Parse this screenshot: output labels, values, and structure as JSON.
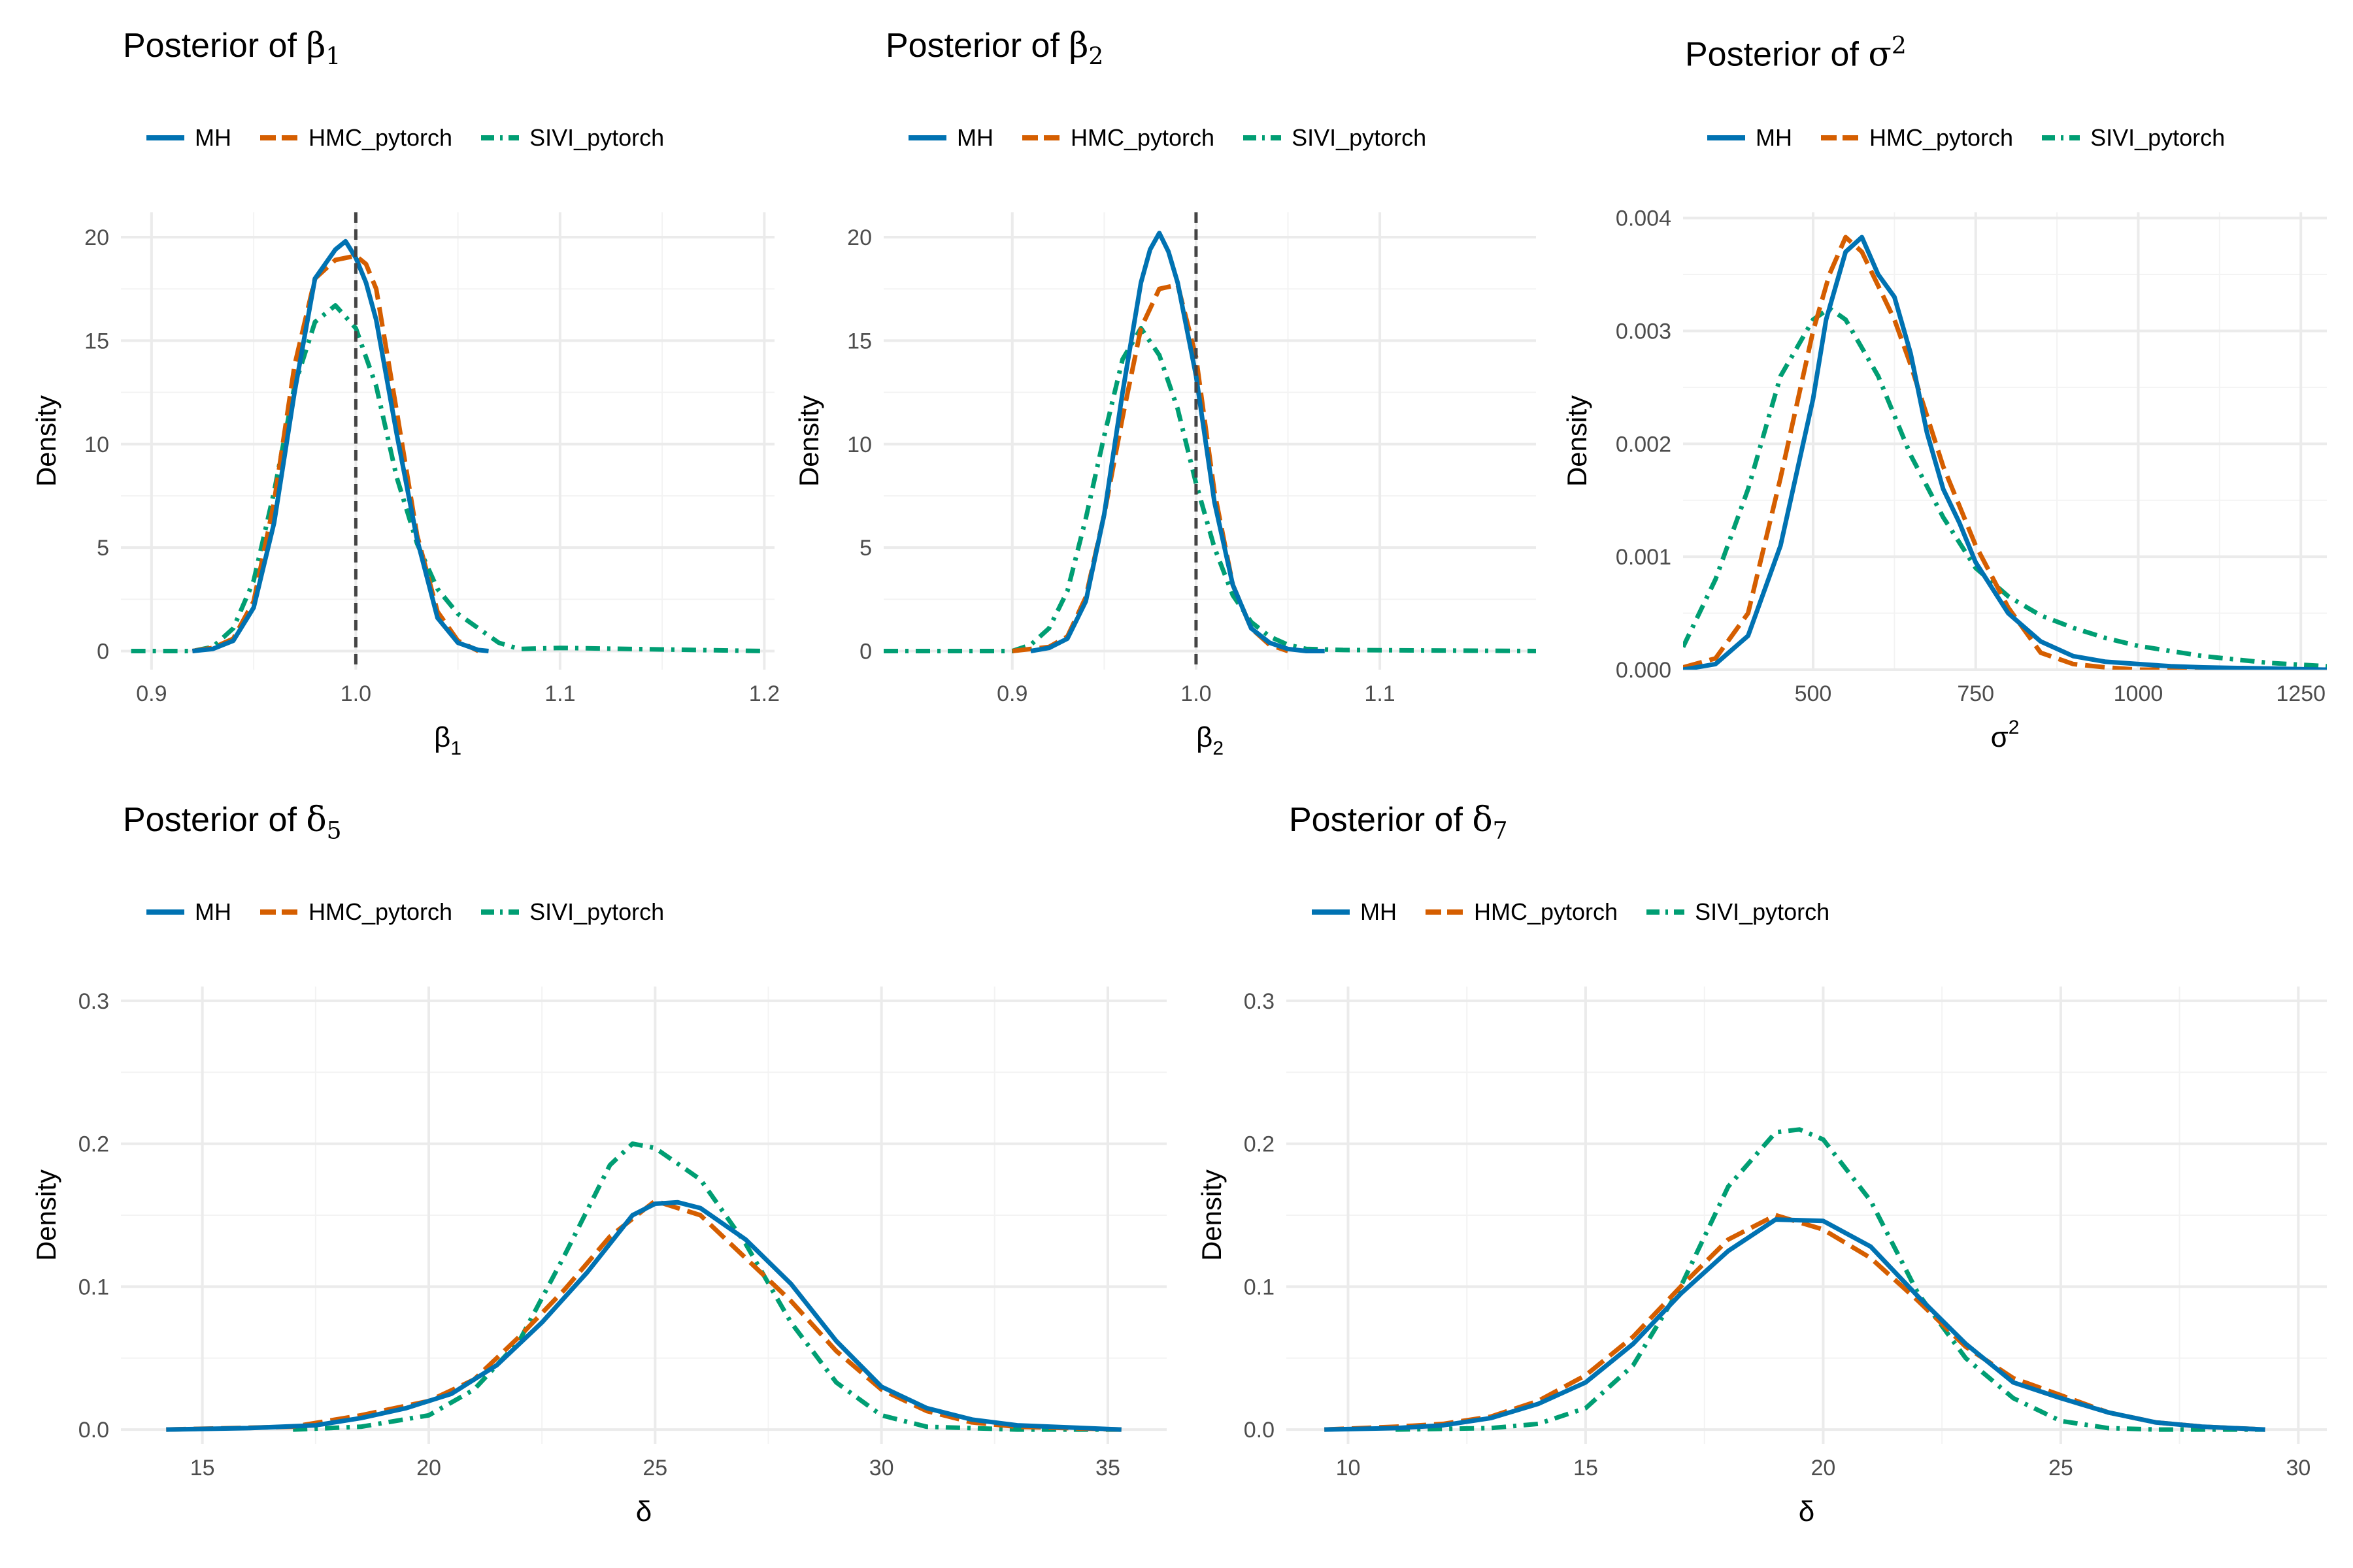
{
  "legend": {
    "labels": [
      "MH",
      "HMC_pytorch",
      "SIVI_pytorch"
    ]
  },
  "colors": {
    "MH": "#0072B2",
    "HMC_pytorch": "#D55E00",
    "SIVI_pytorch": "#009E73",
    "ref_line": "#444444",
    "grid": "#ebebeb"
  },
  "chart_data": [
    {
      "id": "beta1",
      "type": "line",
      "title": "Posterior of β1",
      "title_prefix": "Posterior of ",
      "title_symbol": "β",
      "title_sub": "1",
      "xlabel": "β1",
      "xlabel_symbol": "β",
      "xlabel_sub": "1",
      "ylabel": "Density",
      "xlim": [
        0.885,
        1.205
      ],
      "ylim": [
        -0.9,
        21.2
      ],
      "xticks": [
        0.9,
        1.0,
        1.1,
        1.2
      ],
      "xtick_labels": [
        "0.9",
        "1.0",
        "1.1",
        "1.2"
      ],
      "yticks": [
        0,
        5,
        10,
        15,
        20
      ],
      "ytick_labels": [
        "0",
        "5",
        "10",
        "15",
        "20"
      ],
      "ref_line": 1.0,
      "series": [
        {
          "name": "MH",
          "x": [
            0.92,
            0.93,
            0.94,
            0.95,
            0.96,
            0.97,
            0.98,
            0.99,
            0.995,
            1.0,
            1.005,
            1.01,
            1.02,
            1.03,
            1.04,
            1.05,
            1.06,
            1.065
          ],
          "y": [
            0,
            0.1,
            0.5,
            2.1,
            6.2,
            12.5,
            18,
            19.4,
            19.8,
            19,
            17.8,
            16,
            10.5,
            5.4,
            1.6,
            0.4,
            0.05,
            0
          ]
        },
        {
          "name": "HMC_pytorch",
          "x": [
            0.92,
            0.93,
            0.94,
            0.95,
            0.96,
            0.97,
            0.98,
            0.99,
            1.0,
            1.005,
            1.01,
            1.02,
            1.03,
            1.04,
            1.05,
            1.06
          ],
          "y": [
            0,
            0.15,
            0.6,
            2.4,
            7.2,
            13.8,
            18,
            18.9,
            19.1,
            18.7,
            17.5,
            11.6,
            5.6,
            1.9,
            0.5,
            0
          ]
        },
        {
          "name": "SIVI_pytorch",
          "x": [
            0.89,
            0.92,
            0.93,
            0.94,
            0.95,
            0.96,
            0.97,
            0.98,
            0.99,
            1.0,
            1.01,
            1.02,
            1.03,
            1.04,
            1.05,
            1.06,
            1.07,
            1.08,
            1.1,
            1.2
          ],
          "y": [
            0,
            0,
            0.2,
            1.1,
            3.4,
            7.7,
            12.8,
            15.9,
            16.7,
            15.6,
            12.8,
            8.4,
            5.2,
            3,
            1.8,
            1.1,
            0.4,
            0.1,
            0.15,
            0
          ]
        }
      ]
    },
    {
      "id": "beta2",
      "type": "line",
      "title": "Posterior of β2",
      "title_prefix": "Posterior of ",
      "title_symbol": "β",
      "title_sub": "2",
      "xlabel": "β2",
      "xlabel_symbol": "β",
      "xlabel_sub": "2",
      "ylabel": "Density",
      "xlim": [
        0.83,
        1.185
      ],
      "ylim": [
        -0.9,
        21.2
      ],
      "xticks": [
        0.9,
        1.0,
        1.1
      ],
      "xtick_labels": [
        "0.9",
        "1.0",
        "1.1"
      ],
      "yticks": [
        0,
        5,
        10,
        15,
        20
      ],
      "ytick_labels": [
        "0",
        "5",
        "10",
        "15",
        "20"
      ],
      "ref_line": 1.0,
      "series": [
        {
          "name": "MH",
          "x": [
            0.91,
            0.92,
            0.93,
            0.94,
            0.95,
            0.96,
            0.97,
            0.975,
            0.98,
            0.985,
            0.99,
            1.0,
            1.01,
            1.02,
            1.03,
            1.04,
            1.05,
            1.06,
            1.07
          ],
          "y": [
            0,
            0.15,
            0.6,
            2.4,
            6.6,
            12.5,
            17.8,
            19.4,
            20.2,
            19.3,
            17.8,
            13.3,
            7.2,
            3.2,
            1.1,
            0.4,
            0.1,
            0,
            0
          ]
        },
        {
          "name": "HMC_pytorch",
          "x": [
            0.9,
            0.92,
            0.93,
            0.94,
            0.95,
            0.96,
            0.97,
            0.98,
            0.99,
            1.0,
            1.01,
            1.02,
            1.03,
            1.04,
            1.05
          ],
          "y": [
            0,
            0.2,
            0.7,
            2.6,
            6.6,
            11.3,
            15.6,
            17.5,
            17.7,
            14.2,
            7.7,
            3.2,
            1.1,
            0.3,
            0
          ]
        },
        {
          "name": "SIVI_pytorch",
          "x": [
            0.83,
            0.9,
            0.91,
            0.92,
            0.93,
            0.94,
            0.95,
            0.96,
            0.97,
            0.98,
            0.99,
            1.0,
            1.01,
            1.02,
            1.03,
            1.04,
            1.05,
            1.06,
            1.08,
            1.185
          ],
          "y": [
            0,
            0,
            0.3,
            1.1,
            2.9,
            6.4,
            10.4,
            14.1,
            15.6,
            14.3,
            11.7,
            8.1,
            5,
            2.7,
            1.4,
            0.7,
            0.3,
            0.1,
            0.05,
            0
          ]
        }
      ]
    },
    {
      "id": "sigma2",
      "type": "line",
      "title": "Posterior of σ2",
      "title_prefix": "Posterior of ",
      "title_symbol": "σ",
      "title_sup": "2",
      "xlabel": "σ2",
      "xlabel_symbol": "σ",
      "xlabel_sup": "2",
      "ylabel": "Density",
      "xlim": [
        300,
        1290
      ],
      "ylim": [
        0,
        0.00405
      ],
      "xticks": [
        500,
        750,
        1000,
        1250
      ],
      "xtick_labels": [
        "500",
        "750",
        "1000",
        "1250"
      ],
      "yticks": [
        0,
        0.001,
        0.002,
        0.003,
        0.004
      ],
      "ytick_labels": [
        "0.000",
        "0.001",
        "0.002",
        "0.003",
        "0.004"
      ],
      "series": [
        {
          "name": "MH",
          "x": [
            300,
            350,
            400,
            450,
            500,
            520,
            550,
            575,
            600,
            625,
            650,
            675,
            700,
            725,
            750,
            800,
            850,
            900,
            950,
            1000,
            1050,
            1100,
            1200,
            1290
          ],
          "y": [
            0,
            5e-05,
            0.0003,
            0.0011,
            0.0024,
            0.0031,
            0.0037,
            0.00383,
            0.0035,
            0.0033,
            0.0028,
            0.0021,
            0.0016,
            0.0013,
            0.00095,
            0.0005,
            0.00025,
            0.00012,
            7e-05,
            5e-05,
            3e-05,
            2e-05,
            1e-05,
            0
          ]
        },
        {
          "name": "HMC_pytorch",
          "x": [
            300,
            350,
            400,
            450,
            500,
            525,
            550,
            575,
            600,
            625,
            650,
            700,
            750,
            800,
            850,
            900,
            950,
            1000,
            1100,
            1200
          ],
          "y": [
            2e-05,
            0.0001,
            0.0005,
            0.0017,
            0.003,
            0.0035,
            0.00383,
            0.0037,
            0.0034,
            0.0031,
            0.0027,
            0.0018,
            0.0011,
            0.00055,
            0.00015,
            5e-05,
            2e-05,
            0,
            0,
            0
          ]
        },
        {
          "name": "SIVI_pytorch",
          "x": [
            300,
            350,
            400,
            450,
            500,
            525,
            550,
            600,
            650,
            700,
            750,
            800,
            850,
            900,
            950,
            1000,
            1100,
            1200,
            1290
          ],
          "y": [
            0.0002,
            0.0008,
            0.0016,
            0.0026,
            0.0031,
            0.0032,
            0.0031,
            0.0026,
            0.0019,
            0.00135,
            0.0009,
            0.00065,
            0.00048,
            0.00037,
            0.00028,
            0.00021,
            0.00012,
            6e-05,
            3e-05
          ]
        }
      ]
    },
    {
      "id": "delta5",
      "type": "line",
      "title": "Posterior of δ5",
      "title_prefix": "Posterior of ",
      "title_symbol": "δ",
      "title_sub": "5",
      "xlabel": "δ",
      "xlabel_symbol": "δ",
      "ylabel": "Density",
      "xlim": [
        13.2,
        36.3
      ],
      "ylim": [
        -0.01,
        0.31
      ],
      "xticks": [
        15,
        20,
        25,
        30,
        35
      ],
      "xtick_labels": [
        "15",
        "20",
        "25",
        "30",
        "35"
      ],
      "yticks": [
        0,
        0.1,
        0.2,
        0.3
      ],
      "ytick_labels": [
        "0.0",
        "0.1",
        "0.2",
        "0.3"
      ],
      "series": [
        {
          "name": "MH",
          "x": [
            14.2,
            16,
            17.5,
            18.5,
            19.5,
            20.5,
            21.5,
            22.5,
            23.5,
            24.5,
            25,
            25.5,
            26,
            27,
            28,
            29,
            30,
            31,
            32,
            33,
            35.3
          ],
          "y": [
            0,
            0.001,
            0.003,
            0.008,
            0.015,
            0.025,
            0.045,
            0.075,
            0.11,
            0.15,
            0.158,
            0.159,
            0.155,
            0.133,
            0.102,
            0.062,
            0.03,
            0.015,
            0.007,
            0.003,
            0
          ]
        },
        {
          "name": "HMC_pytorch",
          "x": [
            14.2,
            17,
            18.5,
            20,
            21,
            22,
            23,
            24,
            25,
            26,
            27,
            28,
            29,
            30,
            31,
            32,
            33,
            35.3
          ],
          "y": [
            0,
            0.002,
            0.01,
            0.02,
            0.035,
            0.065,
            0.098,
            0.135,
            0.16,
            0.15,
            0.12,
            0.09,
            0.055,
            0.028,
            0.013,
            0.005,
            0.002,
            0
          ]
        },
        {
          "name": "SIVI_pytorch",
          "x": [
            17,
            18.5,
            20,
            21,
            22,
            23,
            24,
            24.5,
            25,
            26,
            27,
            28,
            29,
            30,
            31,
            33,
            35.3
          ],
          "y": [
            0,
            0.002,
            0.01,
            0.028,
            0.062,
            0.122,
            0.185,
            0.2,
            0.197,
            0.175,
            0.13,
            0.075,
            0.033,
            0.01,
            0.002,
            0,
            0
          ]
        }
      ]
    },
    {
      "id": "delta7",
      "type": "line",
      "title": "Posterior of δ7",
      "title_prefix": "Posterior of ",
      "title_symbol": "δ",
      "title_sub": "7",
      "xlabel": "δ",
      "xlabel_symbol": "δ",
      "ylabel": "Density",
      "xlim": [
        8.7,
        30.6
      ],
      "ylim": [
        -0.01,
        0.31
      ],
      "xticks": [
        10,
        15,
        20,
        25,
        30
      ],
      "xtick_labels": [
        "10",
        "15",
        "20",
        "25",
        "30"
      ],
      "yticks": [
        0,
        0.1,
        0.2,
        0.3
      ],
      "ytick_labels": [
        "0.0",
        "0.1",
        "0.2",
        "0.3"
      ],
      "series": [
        {
          "name": "MH",
          "x": [
            9.5,
            11,
            12,
            13,
            14,
            15,
            16,
            17,
            18,
            19,
            20,
            21,
            22,
            23,
            24,
            25,
            26,
            27,
            28,
            29.3
          ],
          "y": [
            0,
            0.001,
            0.003,
            0.008,
            0.018,
            0.033,
            0.06,
            0.095,
            0.125,
            0.147,
            0.146,
            0.128,
            0.093,
            0.06,
            0.033,
            0.022,
            0.012,
            0.005,
            0.002,
            0
          ]
        },
        {
          "name": "HMC_pytorch",
          "x": [
            9.5,
            11,
            12,
            13,
            14,
            15,
            16,
            17,
            18,
            19,
            20,
            21,
            22,
            23,
            24,
            25,
            26,
            27,
            28,
            29.3
          ],
          "y": [
            0,
            0.002,
            0.004,
            0.009,
            0.02,
            0.038,
            0.065,
            0.1,
            0.133,
            0.15,
            0.14,
            0.12,
            0.09,
            0.058,
            0.036,
            0.024,
            0.012,
            0.005,
            0.002,
            0
          ]
        },
        {
          "name": "SIVI_pytorch",
          "x": [
            11,
            13,
            14,
            15,
            16,
            17,
            18,
            19,
            19.5,
            20,
            21,
            22,
            23,
            24,
            25,
            26,
            27,
            29.3
          ],
          "y": [
            0,
            0.001,
            0.004,
            0.015,
            0.045,
            0.1,
            0.17,
            0.208,
            0.21,
            0.203,
            0.16,
            0.095,
            0.05,
            0.022,
            0.006,
            0.001,
            0,
            0
          ]
        }
      ]
    }
  ]
}
